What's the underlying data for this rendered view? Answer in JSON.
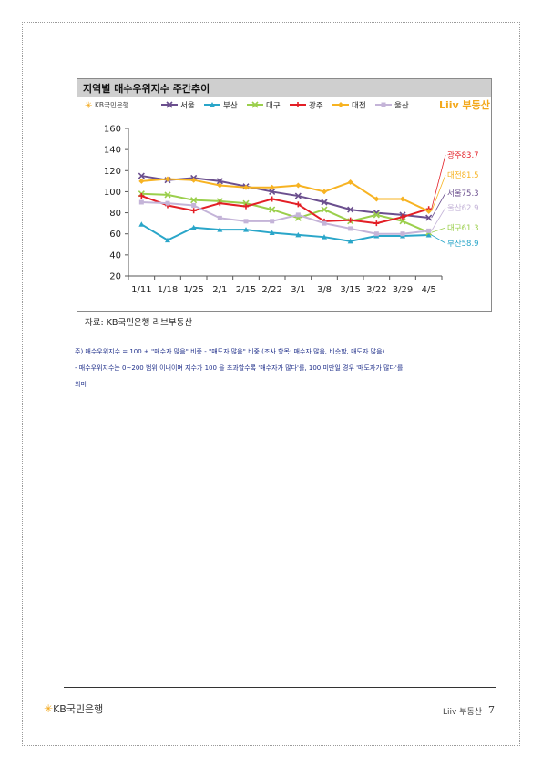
{
  "figure_title": "지역별 매수우위지수 주간추이",
  "brand_logo": "KB국민은행",
  "liiv_logo": "Liiv 부동산",
  "source_note": "자료: KB국민은행 리브부동산",
  "notes": [
    "주) 매수우위지수 = 100 + \"매수자 많음\" 비중 - \"매도자 많음\" 비중  (조사 항목: 매수자 많음, 비슷함, 매도자 많음)",
    "- 매수우위지수는 0~200 범위 이내이며 지수가 100 을 초과할수록 '매수자가 많다'를, 100 미만일 경우 '매도자가 많다'를",
    "의미"
  ],
  "footer": {
    "logo": "KB국민은행",
    "liiv": "Liiv 부동산",
    "page": "7"
  },
  "chart_data": {
    "type": "line",
    "title": "지역별 매수우위지수 주간추이",
    "categories": [
      "1/11",
      "1/18",
      "1/25",
      "2/1",
      "2/15",
      "2/22",
      "3/1",
      "3/8",
      "3/15",
      "3/22",
      "3/29",
      "4/5"
    ],
    "yticks": [
      20,
      40,
      60,
      80,
      100,
      120,
      140,
      160
    ],
    "ylim": [
      20,
      160
    ],
    "legend_position": "top",
    "grid": false,
    "series": [
      {
        "name": "서울",
        "color": "#6b4f8e",
        "marker": "x",
        "values": [
          115,
          111,
          113,
          110,
          105,
          100,
          96,
          90,
          83,
          80,
          78,
          75.3
        ],
        "end_label": "서울75.3"
      },
      {
        "name": "부산",
        "color": "#2aa6c9",
        "marker": "triangle",
        "values": [
          69,
          54,
          66,
          64,
          64,
          61,
          59,
          57,
          53,
          58,
          58,
          58.9
        ],
        "end_label": "부산58.9"
      },
      {
        "name": "대구",
        "color": "#9bcf4c",
        "marker": "x",
        "values": [
          98,
          97,
          92,
          91,
          89,
          83,
          75,
          83,
          72,
          78,
          72,
          61.3
        ],
        "end_label": "대구61.3"
      },
      {
        "name": "광주",
        "color": "#e31f26",
        "marker": "plus",
        "values": [
          96,
          87,
          82,
          89,
          86,
          93,
          88,
          72,
          73,
          70,
          76,
          83.7
        ],
        "end_label": "광주83.7"
      },
      {
        "name": "대전",
        "color": "#f7b322",
        "marker": "diamond",
        "values": [
          110,
          112,
          111,
          106,
          104,
          104,
          106,
          100,
          109,
          93,
          93,
          81.5
        ],
        "end_label": "대전81.5"
      },
      {
        "name": "울산",
        "color": "#c4b4d8",
        "marker": "square",
        "values": [
          90,
          89,
          87,
          75,
          72,
          72,
          78,
          70,
          65,
          60,
          60,
          62.9
        ],
        "end_label": "울산62.9"
      }
    ]
  }
}
